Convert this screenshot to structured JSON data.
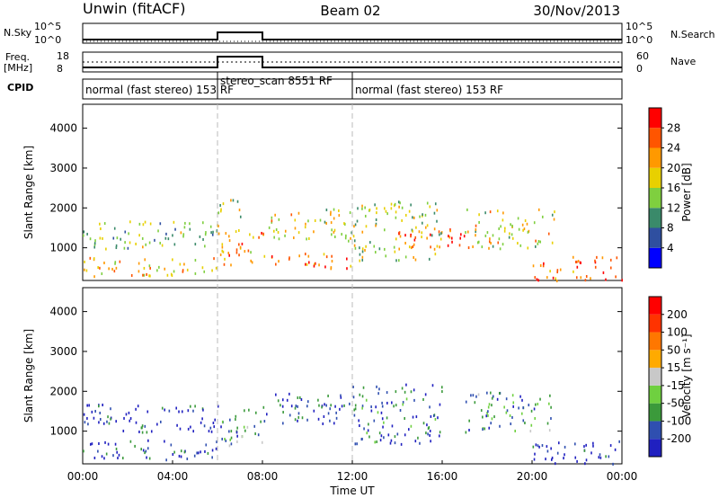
{
  "header": {
    "station": "Unwin (fitACF)",
    "beam": "Beam 02",
    "date": "30/Nov/2013"
  },
  "status_panels": {
    "nsky_label": "N.Sky",
    "nsearch_label": "N.Search",
    "log_top": "10^5",
    "log_bottom": "10^0",
    "freq_label": "Freq.",
    "freq_unit": "[MHz]",
    "freq_ticks": [
      "18",
      "8"
    ],
    "nave_label": "Nave",
    "nave_ticks": [
      "60",
      "0"
    ],
    "cpid_label": "CPID",
    "cpid_segments": [
      {
        "label": "normal (fast stereo) 153 RF",
        "start_hour": 0,
        "end_hour": 6
      },
      {
        "label": "stereo_scan 8551 RF",
        "start_hour": 6,
        "end_hour": 12
      },
      {
        "label": "normal (fast stereo) 153 RF",
        "start_hour": 12,
        "end_hour": 24
      }
    ]
  },
  "axes": {
    "x_label": "Time UT",
    "x_ticks": [
      "00:00",
      "04:00",
      "08:00",
      "12:00",
      "16:00",
      "20:00",
      "00:00"
    ],
    "y_label": "Slant Range [km]",
    "y_ticks": [
      "1000",
      "2000",
      "3000",
      "4000"
    ]
  },
  "colors": {
    "power_scale": [
      "#0000ff",
      "#2f4fa0",
      "#3a8a6a",
      "#7fcf3f",
      "#e8d000",
      "#ff9900",
      "#ff5500",
      "#ff0000"
    ],
    "velocity_scale": [
      "#2020c0",
      "#2f4fb0",
      "#3b9a3b",
      "#6fd040",
      "#c8c8c8",
      "#ffaa00",
      "#ff7700",
      "#ff3300",
      "#ff0000"
    ]
  },
  "chart_data": [
    {
      "type": "heatmap",
      "title": "",
      "xlabel": "Time UT",
      "ylabel": "Slant Range [km]",
      "xlim": [
        0,
        24
      ],
      "ylim": [
        180,
        4600
      ],
      "colorbar": {
        "label": "Power [dB]",
        "ticks": [
          "4",
          "8",
          "12",
          "16",
          "20",
          "24",
          "28"
        ],
        "range": [
          0,
          32
        ]
      },
      "scatter_bands": [
        {
          "t0": 0,
          "t1": 6,
          "r0": 300,
          "r1": 800,
          "v": 20
        },
        {
          "t0": 0,
          "t1": 6,
          "r0": 1000,
          "r1": 1700,
          "v": 14
        },
        {
          "t0": 6,
          "t1": 8,
          "r0": 600,
          "r1": 1600,
          "v": 22
        },
        {
          "t0": 6,
          "t1": 7,
          "r0": 1800,
          "r1": 2400,
          "v": 18
        },
        {
          "t0": 8,
          "t1": 12,
          "r0": 1200,
          "r1": 2000,
          "v": 18
        },
        {
          "t0": 8,
          "t1": 12,
          "r0": 500,
          "r1": 900,
          "v": 24
        },
        {
          "t0": 12,
          "t1": 16,
          "r0": 700,
          "r1": 2200,
          "v": 16
        },
        {
          "t0": 14,
          "t1": 17,
          "r0": 1000,
          "r1": 1500,
          "v": 28
        },
        {
          "t0": 17,
          "t1": 21,
          "r0": 1000,
          "r1": 2000,
          "v": 18
        },
        {
          "t0": 20,
          "t1": 24,
          "r0": 200,
          "r1": 800,
          "v": 26
        }
      ]
    },
    {
      "type": "heatmap",
      "title": "",
      "xlabel": "Time UT",
      "ylabel": "Slant Range [km]",
      "xlim": [
        0,
        24
      ],
      "ylim": [
        180,
        4600
      ],
      "colorbar": {
        "label": "Velocity [m s⁻¹]",
        "ticks": [
          "200",
          "100",
          "50",
          "15",
          "-15",
          "-50",
          "-100",
          "-200"
        ],
        "range": [
          -250,
          250
        ]
      },
      "scatter_bands": [
        {
          "t0": 0,
          "t1": 6,
          "r0": 300,
          "r1": 800,
          "v": -180
        },
        {
          "t0": 0,
          "t1": 6,
          "r0": 1000,
          "r1": 1700,
          "v": -200
        },
        {
          "t0": 6,
          "t1": 8,
          "r0": 600,
          "r1": 1600,
          "v": -100
        },
        {
          "t0": 8,
          "t1": 12,
          "r0": 1200,
          "r1": 2000,
          "v": -180
        },
        {
          "t0": 12,
          "t1": 16,
          "r0": 700,
          "r1": 2200,
          "v": -160
        },
        {
          "t0": 17,
          "t1": 21,
          "r0": 1000,
          "r1": 2000,
          "v": -120
        },
        {
          "t0": 20,
          "t1": 24,
          "r0": 200,
          "r1": 800,
          "v": -220
        }
      ]
    }
  ]
}
